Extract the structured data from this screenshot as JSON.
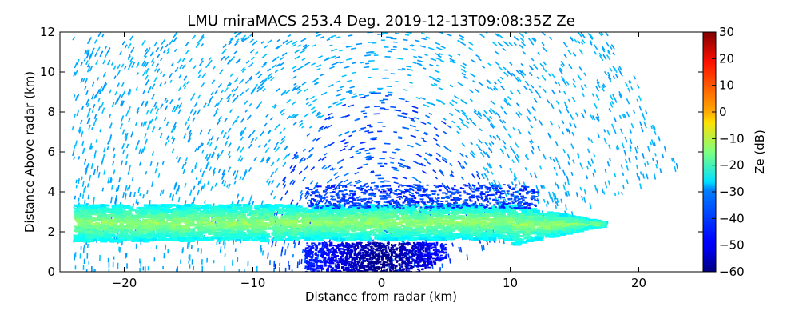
{
  "chart_data": {
    "type": "heatmap",
    "title": "LMU miraMACS 253.4 Deg. 2019-12-13T09:08:35Z  Ze",
    "xlabel": "Distance from radar (km)",
    "ylabel": "Distance Above radar  (km)",
    "xlim": [
      -25,
      25
    ],
    "ylim": [
      0,
      12
    ],
    "x_ticks": [
      -20,
      -10,
      0,
      10,
      20
    ],
    "y_ticks": [
      0,
      2,
      4,
      6,
      8,
      10,
      12
    ],
    "colorbar": {
      "label": "Ze (dB)",
      "range": [
        -60,
        30
      ],
      "ticks": [
        -60,
        -50,
        -40,
        -30,
        -20,
        -10,
        0,
        10,
        20,
        30
      ],
      "colormap": "jet"
    },
    "features": [
      {
        "name": "cloud layer",
        "x_range": [
          -24,
          17
        ],
        "y_range": [
          1.5,
          3.5
        ],
        "ze_db": [
          -25,
          -12
        ]
      },
      {
        "name": "noise field",
        "x_range": [
          -24,
          24
        ],
        "y_range": [
          0,
          12
        ],
        "ze_db": [
          -32,
          -28
        ]
      },
      {
        "name": "near-radar weak echo",
        "x_range": [
          -6,
          5
        ],
        "y_range": [
          0,
          1.5
        ],
        "ze_db": [
          -60,
          -45
        ]
      }
    ]
  }
}
